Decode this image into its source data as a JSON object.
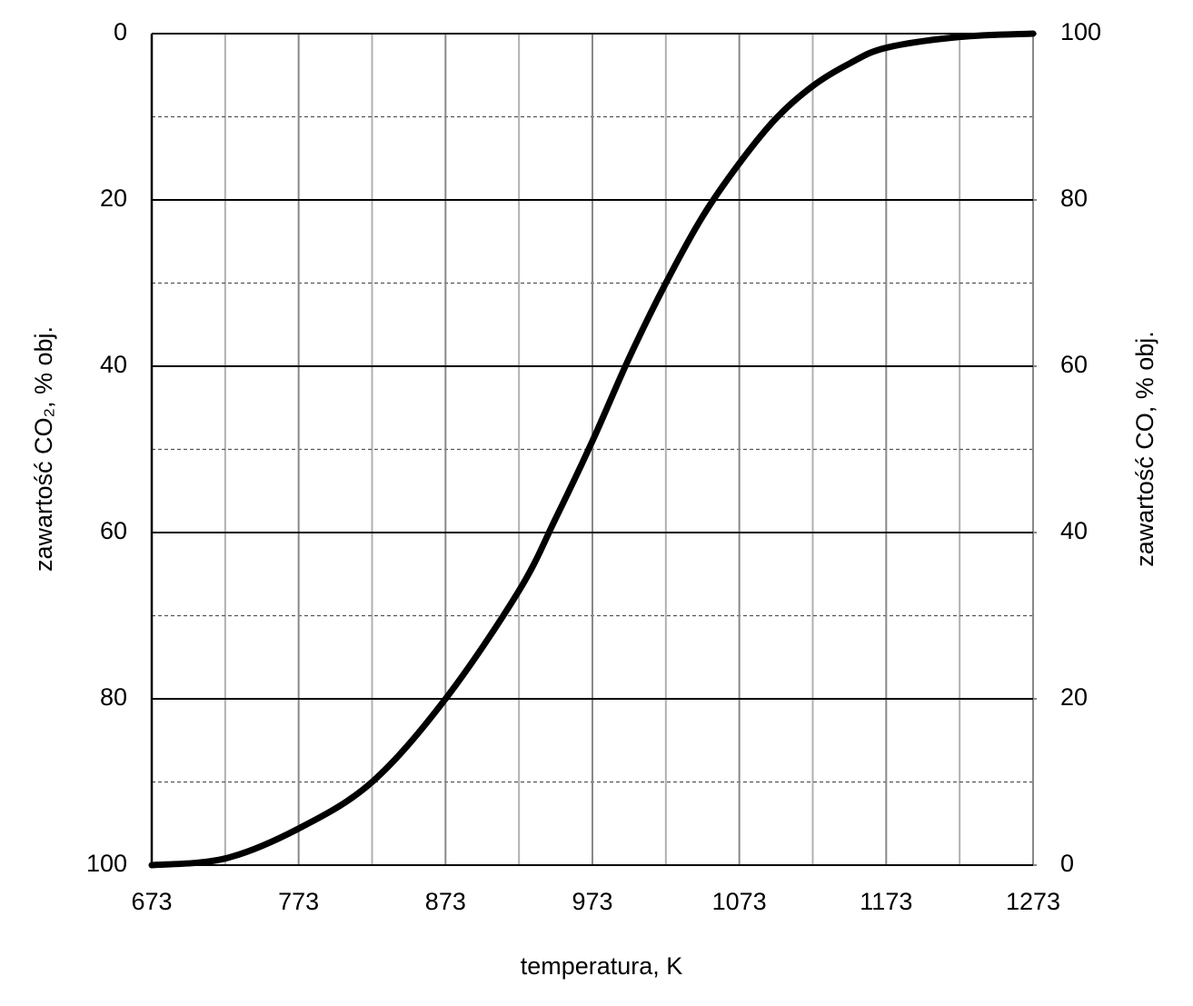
{
  "chart_data": {
    "type": "line",
    "xlabel": "temperatura, K",
    "ylabel": "zawartość CO₂, % obj.",
    "y2label": "zawartość CO, % obj.",
    "x": [
      673,
      723,
      773,
      823,
      873,
      923,
      948,
      973,
      998,
      1023,
      1048,
      1073,
      1098,
      1123,
      1148,
      1173,
      1223,
      1273
    ],
    "series": [
      {
        "color": "#000000",
        "axis": "y2",
        "values": [
          0,
          0.8,
          4.4,
          10,
          20,
          33,
          41.7,
          51,
          61,
          70,
          78,
          84.4,
          89.8,
          93.7,
          96.4,
          98.3,
          99.6,
          100
        ]
      }
    ],
    "xlim": [
      673,
      1273
    ],
    "xticks": [
      673,
      773,
      873,
      973,
      1073,
      1173,
      1273
    ],
    "xminorticks": [
      723,
      823,
      923,
      1023,
      1123,
      1223
    ],
    "ylim": [
      100,
      0
    ],
    "yticks": [
      0,
      20,
      40,
      60,
      80,
      100
    ],
    "yminorticks": [
      10,
      30,
      50,
      70,
      90
    ],
    "y2lim": [
      0,
      100
    ],
    "y2ticks": [
      0,
      20,
      40,
      60,
      80,
      100
    ],
    "grid": true
  }
}
